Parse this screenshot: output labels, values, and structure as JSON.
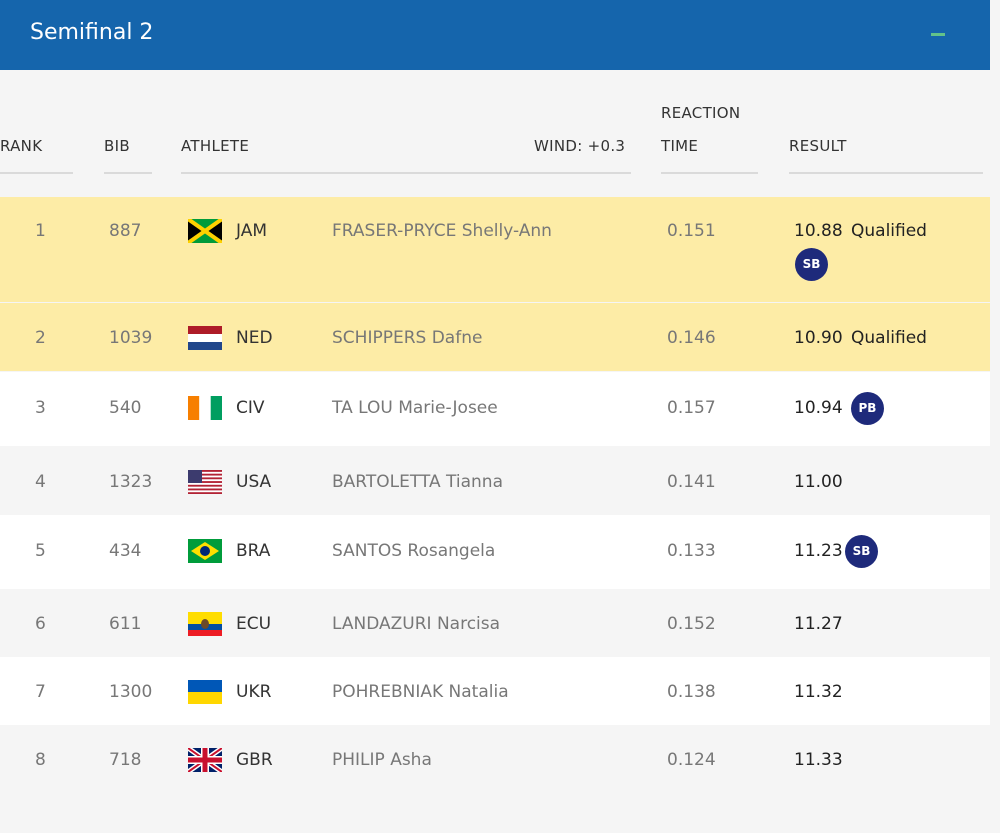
{
  "header": {
    "title": "Semifinal 2",
    "collapse_icon": "minus-icon"
  },
  "columns": {
    "rank": "RANK",
    "bib": "BIB",
    "athlete": "ATHLETE",
    "wind": "WIND: +0.3",
    "reaction_line1": "REACTION",
    "reaction_line2": "TIME",
    "result": "RESULT"
  },
  "rows": [
    {
      "rank": "1",
      "bib": "887",
      "flag": "jamaica-flag",
      "noc": "JAM",
      "athlete": "FRASER-PRYCE Shelly-Ann",
      "reaction": "0.151",
      "result": "10.88",
      "qualified": "Qualified",
      "badge": "SB"
    },
    {
      "rank": "2",
      "bib": "1039",
      "flag": "netherlands-flag",
      "noc": "NED",
      "athlete": "SCHIPPERS Dafne",
      "reaction": "0.146",
      "result": "10.90",
      "qualified": "Qualified",
      "badge": ""
    },
    {
      "rank": "3",
      "bib": "540",
      "flag": "ivory-coast-flag",
      "noc": "CIV",
      "athlete": "TA LOU Marie-Josee",
      "reaction": "0.157",
      "result": "10.94",
      "qualified": "",
      "badge": "PB"
    },
    {
      "rank": "4",
      "bib": "1323",
      "flag": "usa-flag",
      "noc": "USA",
      "athlete": "BARTOLETTA Tianna",
      "reaction": "0.141",
      "result": "11.00",
      "qualified": "",
      "badge": ""
    },
    {
      "rank": "5",
      "bib": "434",
      "flag": "brazil-flag",
      "noc": "BRA",
      "athlete": "SANTOS Rosangela",
      "reaction": "0.133",
      "result": "11.23",
      "qualified": "",
      "badge": "SB"
    },
    {
      "rank": "6",
      "bib": "611",
      "flag": "ecuador-flag",
      "noc": "ECU",
      "athlete": "LANDAZURI Narcisa",
      "reaction": "0.152",
      "result": "11.27",
      "qualified": "",
      "badge": ""
    },
    {
      "rank": "7",
      "bib": "1300",
      "flag": "ukraine-flag",
      "noc": "UKR",
      "athlete": "POHREBNIAK Natalia",
      "reaction": "0.138",
      "result": "11.32",
      "qualified": "",
      "badge": ""
    },
    {
      "rank": "8",
      "bib": "718",
      "flag": "great-britain-flag",
      "noc": "GBR",
      "athlete": "PHILIP Asha",
      "reaction": "0.124",
      "result": "11.33",
      "qualified": "",
      "badge": ""
    }
  ],
  "colors": {
    "header_bg": "#1565ac",
    "qualified_row": "#fdeca6",
    "badge_bg": "#1e2a7b",
    "collapse_icon": "#63c28a"
  }
}
